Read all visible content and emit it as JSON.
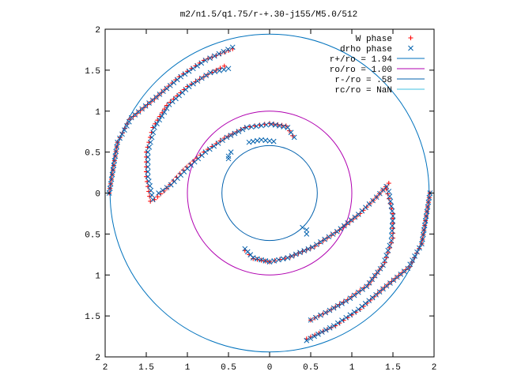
{
  "chart_data": {
    "type": "scatter",
    "title": "m2/n1.5/q1.75/r-+.30-j155/M5.0/512",
    "xlim": [
      -2,
      2
    ],
    "ylim": [
      -2,
      2
    ],
    "x_ticks": [
      -2,
      -1.5,
      -1,
      -0.5,
      0,
      0.5,
      1,
      1.5,
      2
    ],
    "y_ticks": [
      -2,
      -1.5,
      -1,
      -0.5,
      0,
      0.5,
      1,
      1.5,
      2
    ],
    "x_tick_labels": [
      "2",
      "1.5",
      "1",
      "0.5",
      "0",
      "0.5",
      "1",
      "1.5",
      "2"
    ],
    "y_tick_labels": [
      "2",
      "1.5",
      "1",
      "0.5",
      "0",
      "0.5",
      "1",
      "1.5",
      "2"
    ],
    "grid": false,
    "legend_position": "top-right",
    "series": [
      {
        "name": "W phase",
        "marker": "plus",
        "color": "#ff0000",
        "arms": [
          [
            [
              -1.45,
              -0.1
            ],
            [
              -1.5,
              0.2
            ],
            [
              -1.5,
              0.5
            ],
            [
              -1.42,
              0.8
            ],
            [
              -1.25,
              1.07
            ],
            [
              -1.0,
              1.3
            ],
            [
              -0.75,
              1.45
            ],
            [
              -0.55,
              1.55
            ]
          ],
          [
            [
              -1.4,
              -0.08
            ],
            [
              -1.25,
              0.06
            ],
            [
              -1.05,
              0.28
            ],
            [
              -0.8,
              0.5
            ],
            [
              -0.55,
              0.67
            ],
            [
              -0.3,
              0.8
            ],
            [
              0.0,
              0.85
            ],
            [
              0.2,
              0.82
            ],
            [
              0.28,
              0.7
            ]
          ],
          [
            [
              -1.95,
              0.0
            ],
            [
              -1.85,
              0.62
            ],
            [
              -1.7,
              0.9
            ],
            [
              -1.4,
              1.15
            ],
            [
              -1.1,
              1.42
            ],
            [
              -0.8,
              1.62
            ],
            [
              -0.45,
              1.76
            ]
          ],
          [
            [
              1.45,
              0.12
            ],
            [
              1.3,
              -0.05
            ],
            [
              1.1,
              -0.25
            ],
            [
              0.85,
              -0.45
            ],
            [
              0.55,
              -0.65
            ],
            [
              0.25,
              -0.78
            ],
            [
              0.0,
              -0.84
            ],
            [
              -0.2,
              -0.8
            ],
            [
              -0.3,
              -0.7
            ]
          ],
          [
            [
              1.42,
              0.05
            ],
            [
              1.5,
              -0.25
            ],
            [
              1.5,
              -0.55
            ],
            [
              1.4,
              -0.85
            ],
            [
              1.2,
              -1.12
            ],
            [
              0.95,
              -1.3
            ],
            [
              0.7,
              -1.45
            ],
            [
              0.5,
              -1.55
            ]
          ],
          [
            [
              1.95,
              0.0
            ],
            [
              1.85,
              -0.62
            ],
            [
              1.7,
              -0.9
            ],
            [
              1.4,
              -1.15
            ],
            [
              1.1,
              -1.42
            ],
            [
              0.8,
              -1.62
            ],
            [
              0.45,
              -1.78
            ]
          ]
        ]
      },
      {
        "name": "drho phase",
        "marker": "cross",
        "color": "#0060ad",
        "arms": [
          [
            [
              -1.42,
              -0.08
            ],
            [
              -1.48,
              0.2
            ],
            [
              -1.48,
              0.5
            ],
            [
              -1.4,
              0.8
            ],
            [
              -1.22,
              1.08
            ],
            [
              -0.98,
              1.3
            ],
            [
              -0.72,
              1.47
            ],
            [
              -0.5,
              1.52
            ]
          ],
          [
            [
              -1.35,
              0.0
            ],
            [
              -1.2,
              0.1
            ],
            [
              -1.0,
              0.3
            ],
            [
              -0.78,
              0.5
            ],
            [
              -0.52,
              0.68
            ],
            [
              -0.28,
              0.8
            ],
            [
              0.02,
              0.84
            ],
            [
              0.22,
              0.8
            ],
            [
              0.3,
              0.68
            ]
          ],
          [
            [
              -0.5,
              0.42
            ],
            [
              -0.5,
              0.45
            ],
            [
              -0.47,
              0.5
            ]
          ],
          [
            [
              -0.25,
              0.62
            ],
            [
              -0.1,
              0.65
            ],
            [
              0.05,
              0.63
            ]
          ],
          [
            [
              -1.95,
              0.0
            ],
            [
              -1.85,
              0.62
            ],
            [
              -1.68,
              0.92
            ],
            [
              -1.38,
              1.17
            ],
            [
              -1.08,
              1.42
            ],
            [
              -0.78,
              1.62
            ],
            [
              -0.45,
              1.78
            ]
          ],
          [
            [
              1.42,
              0.08
            ],
            [
              1.3,
              -0.05
            ],
            [
              1.08,
              -0.26
            ],
            [
              0.82,
              -0.47
            ],
            [
              0.52,
              -0.66
            ],
            [
              0.22,
              -0.79
            ],
            [
              0.0,
              -0.84
            ],
            [
              -0.2,
              -0.79
            ],
            [
              -0.3,
              -0.68
            ]
          ],
          [
            [
              0.4,
              -0.42
            ],
            [
              0.45,
              -0.45
            ],
            [
              0.45,
              -0.5
            ]
          ],
          [
            [
              1.45,
              0.02
            ],
            [
              1.5,
              -0.28
            ],
            [
              1.48,
              -0.58
            ],
            [
              1.38,
              -0.88
            ],
            [
              1.18,
              -1.14
            ],
            [
              0.93,
              -1.32
            ],
            [
              0.68,
              -1.46
            ],
            [
              0.5,
              -1.55
            ]
          ],
          [
            [
              1.95,
              0.0
            ],
            [
              1.85,
              -0.62
            ],
            [
              1.68,
              -0.92
            ],
            [
              1.38,
              -1.17
            ],
            [
              1.08,
              -1.42
            ],
            [
              0.78,
              -1.62
            ],
            [
              0.45,
              -1.8
            ]
          ]
        ]
      }
    ],
    "circles": [
      {
        "name": "r+/ro = 1.94",
        "radius": 1.94,
        "color": "#0072bd"
      },
      {
        "name": "ro/ro = 1.00",
        "radius": 1.0,
        "color": "#b000b0"
      },
      {
        "name": "r-/ro = .58",
        "radius": 0.58,
        "color": "#0060ad"
      },
      {
        "name": "rc/ro = NaN",
        "radius": null,
        "color": "#40c0e0"
      }
    ]
  }
}
